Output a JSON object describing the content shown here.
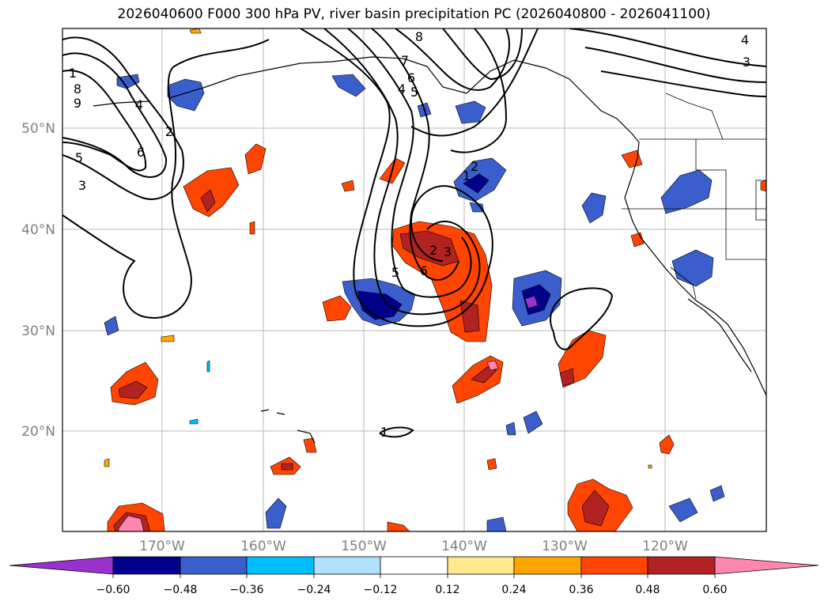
{
  "title": "2026040600 F000 300 hPa PV, river basin precipitation PC (2026040800 - 2026041100)",
  "map": {
    "lat_labels": [
      "50°N",
      "40°N",
      "30°N",
      "20°N"
    ],
    "lon_labels": [
      "170°W",
      "160°W",
      "150°W",
      "140°W",
      "130°W",
      "120°W"
    ],
    "contour_labels": [
      "1",
      "8",
      "9",
      "4",
      "2",
      "6",
      "5",
      "3",
      "8",
      "7",
      "6",
      "4",
      "5",
      "1",
      "2",
      "3",
      "2",
      "4",
      "3",
      "5",
      "6",
      "1"
    ]
  },
  "colorbar": {
    "ticks": [
      "−0.60",
      "−0.48",
      "−0.36",
      "−0.24",
      "−0.12",
      "0.12",
      "0.24",
      "0.36",
      "0.48",
      "0.60"
    ],
    "colors": [
      "#9932cc",
      "#00008b",
      "#3a5fcd",
      "#00bfff",
      "#b0e2ff",
      "#ffffff",
      "#ffe98c",
      "#ffa500",
      "#ff4500",
      "#b22222",
      "#ff86b0"
    ]
  }
}
